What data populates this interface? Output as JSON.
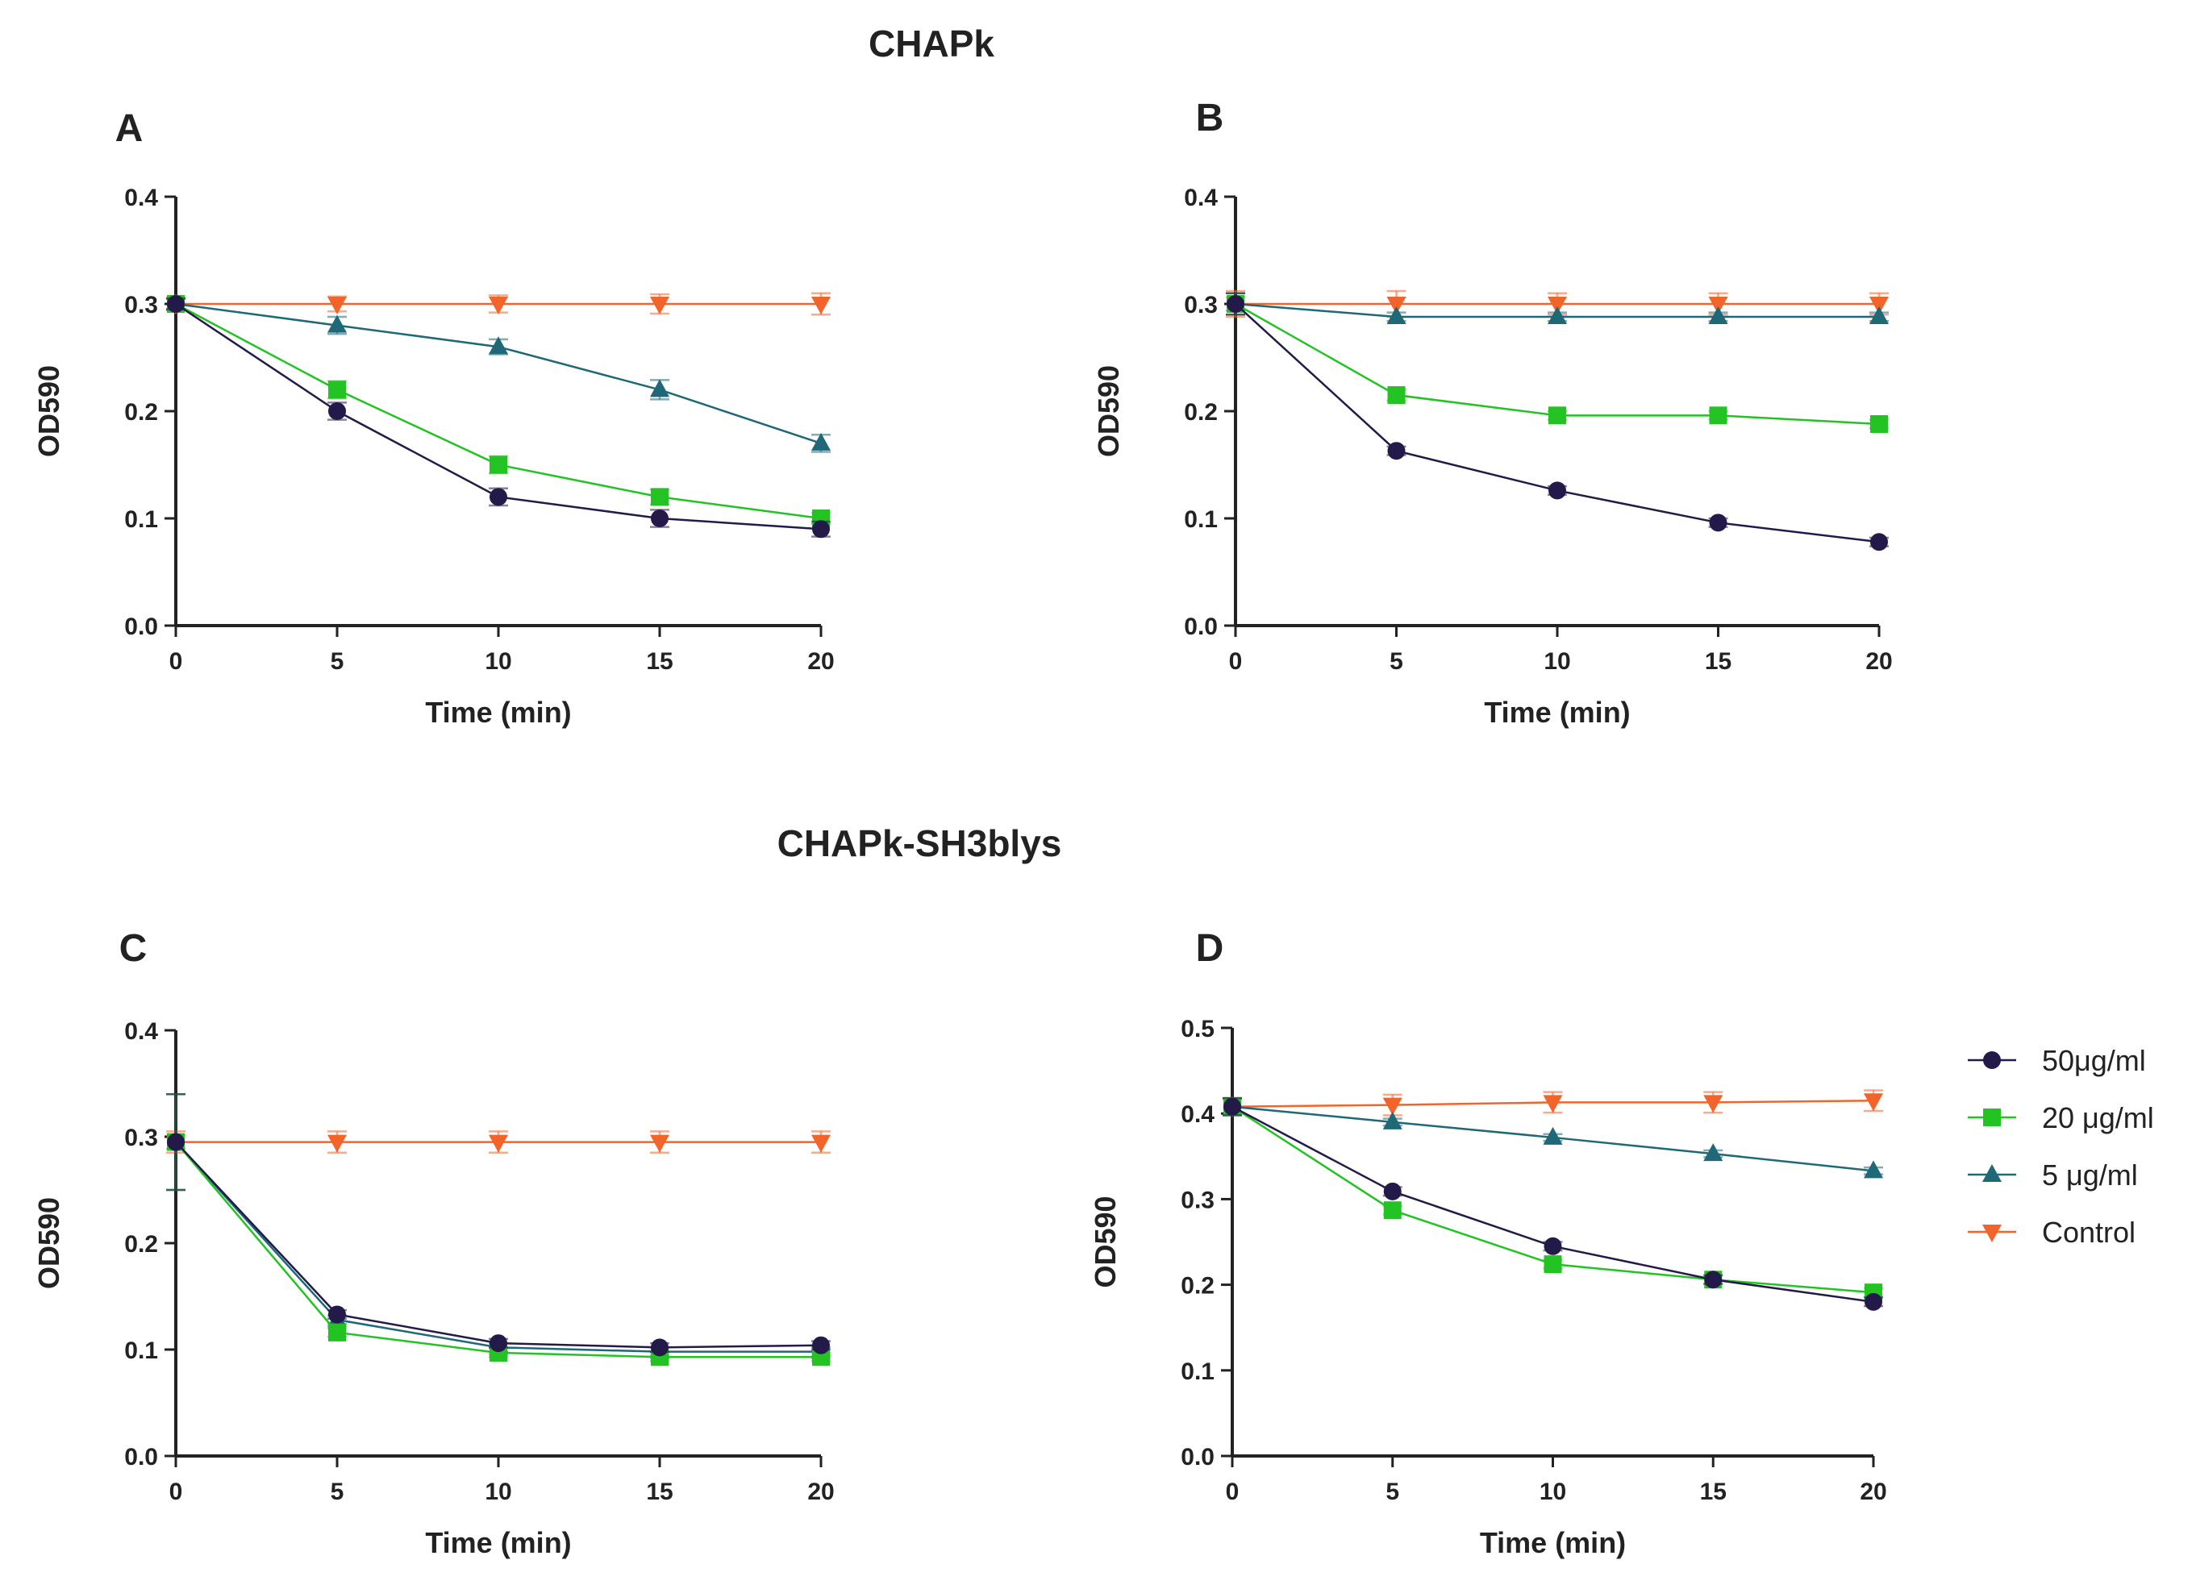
{
  "figure": {
    "section_titles": [
      "CHAPk",
      "CHAPk-SH3blys"
    ]
  },
  "legend": {
    "entries": [
      "50μg/ml",
      "20 μg/ml",
      "5 μg/ml",
      "Control"
    ]
  },
  "colors": {
    "50μg/ml": "#241a4a",
    "20 μg/ml": "#22c322",
    "5 μg/ml": "#1f6878",
    "Control": "#f2642a"
  },
  "chart_data": [
    {
      "panel": "A",
      "type": "line",
      "xlabel": "Time (min)",
      "ylabel": "OD590",
      "x": [
        0,
        5,
        10,
        15,
        20
      ],
      "xlim": [
        0,
        20
      ],
      "xticks": [
        "0",
        "5",
        "10",
        "15",
        "20"
      ],
      "ylim": [
        0,
        0.4
      ],
      "yticks": [
        "0.0",
        "0.1",
        "0.2",
        "0.3",
        "0.4"
      ],
      "series": [
        {
          "name": "50μg/ml",
          "marker": "circle",
          "values": [
            0.3,
            0.2,
            0.12,
            0.1,
            0.09
          ],
          "errors": [
            0.005,
            0.008,
            0.008,
            0.008,
            0.007
          ]
        },
        {
          "name": "20 μg/ml",
          "marker": "square",
          "values": [
            0.3,
            0.22,
            0.15,
            0.12,
            0.1
          ],
          "errors": [
            0.005,
            0.008,
            0.008,
            0.007,
            0.005
          ]
        },
        {
          "name": "5 μg/ml",
          "marker": "triangle-up",
          "values": [
            0.3,
            0.28,
            0.26,
            0.22,
            0.17
          ],
          "errors": [
            0.005,
            0.008,
            0.007,
            0.009,
            0.008
          ]
        },
        {
          "name": "Control",
          "marker": "triangle-down",
          "values": [
            0.3,
            0.3,
            0.3,
            0.3,
            0.3
          ],
          "errors": [
            0.005,
            0.007,
            0.008,
            0.009,
            0.01
          ]
        }
      ]
    },
    {
      "panel": "B",
      "type": "line",
      "xlabel": "Time (min)",
      "ylabel": "OD590",
      "x": [
        0,
        5,
        10,
        15,
        20
      ],
      "xlim": [
        0,
        20
      ],
      "xticks": [
        "0",
        "5",
        "10",
        "15",
        "20"
      ],
      "ylim": [
        0,
        0.4
      ],
      "yticks": [
        "0.0",
        "0.1",
        "0.2",
        "0.3",
        "0.4"
      ],
      "series": [
        {
          "name": "50μg/ml",
          "marker": "circle",
          "values": [
            0.3,
            0.163,
            0.126,
            0.096,
            0.078
          ],
          "errors": [
            0.01,
            0.004,
            0.004,
            0.004,
            0.004
          ]
        },
        {
          "name": "20 μg/ml",
          "marker": "square",
          "values": [
            0.3,
            0.215,
            0.196,
            0.196,
            0.188
          ],
          "errors": [
            0.01,
            0.005,
            0.004,
            0.004,
            0.004
          ]
        },
        {
          "name": "5 μg/ml",
          "marker": "triangle-up",
          "values": [
            0.3,
            0.288,
            0.288,
            0.288,
            0.288
          ],
          "errors": [
            0.01,
            0.004,
            0.004,
            0.004,
            0.004
          ]
        },
        {
          "name": "Control",
          "marker": "triangle-down",
          "values": [
            0.3,
            0.3,
            0.3,
            0.3,
            0.3
          ],
          "errors": [
            0.012,
            0.012,
            0.01,
            0.01,
            0.01
          ]
        }
      ]
    },
    {
      "panel": "C",
      "type": "line",
      "xlabel": "Time (min)",
      "ylabel": "OD590",
      "x": [
        0,
        5,
        10,
        15,
        20
      ],
      "xlim": [
        0,
        20
      ],
      "xticks": [
        "0",
        "5",
        "10",
        "15",
        "20"
      ],
      "ylim": [
        0,
        0.4
      ],
      "yticks": [
        "0.0",
        "0.1",
        "0.2",
        "0.3",
        "0.4"
      ],
      "series": [
        {
          "name": "50μg/ml",
          "marker": "circle",
          "values": [
            0.295,
            0.133,
            0.106,
            0.102,
            0.104
          ],
          "errors": [
            0.045,
            0.004,
            0.004,
            0.004,
            0.004
          ]
        },
        {
          "name": "20 μg/ml",
          "marker": "square",
          "values": [
            0.295,
            0.116,
            0.097,
            0.093,
            0.093
          ],
          "errors": [
            0.045,
            0.004,
            0.004,
            0.004,
            0.004
          ]
        },
        {
          "name": "5 μg/ml",
          "marker": "triangle-up",
          "values": [
            0.295,
            0.128,
            0.102,
            0.098,
            0.098
          ],
          "errors": [
            0.045,
            0.004,
            0.004,
            0.004,
            0.004
          ]
        },
        {
          "name": "Control",
          "marker": "triangle-down",
          "values": [
            0.295,
            0.295,
            0.295,
            0.295,
            0.295
          ],
          "errors": [
            0.01,
            0.01,
            0.01,
            0.01,
            0.01
          ]
        }
      ]
    },
    {
      "panel": "D",
      "type": "line",
      "xlabel": "Time (min)",
      "ylabel": "OD590",
      "x": [
        0,
        5,
        10,
        15,
        20
      ],
      "xlim": [
        0,
        20
      ],
      "xticks": [
        "0",
        "5",
        "10",
        "15",
        "20"
      ],
      "ylim": [
        0,
        0.5
      ],
      "yticks": [
        "0.0",
        "0.1",
        "0.2",
        "0.3",
        "0.4",
        "0.5"
      ],
      "series": [
        {
          "name": "50μg/ml",
          "marker": "circle",
          "values": [
            0.408,
            0.309,
            0.245,
            0.206,
            0.18
          ],
          "errors": [
            0.01,
            0.005,
            0.005,
            0.005,
            0.005
          ]
        },
        {
          "name": "20 μg/ml",
          "marker": "square",
          "values": [
            0.408,
            0.287,
            0.224,
            0.206,
            0.191
          ],
          "errors": [
            0.01,
            0.005,
            0.005,
            0.005,
            0.005
          ]
        },
        {
          "name": "5 μg/ml",
          "marker": "triangle-up",
          "values": [
            0.408,
            0.39,
            0.372,
            0.353,
            0.333
          ],
          "errors": [
            0.01,
            0.004,
            0.004,
            0.004,
            0.004
          ]
        },
        {
          "name": "Control",
          "marker": "triangle-down",
          "values": [
            0.408,
            0.41,
            0.413,
            0.413,
            0.415
          ],
          "errors": [
            0.01,
            0.012,
            0.012,
            0.012,
            0.012
          ]
        }
      ]
    }
  ]
}
